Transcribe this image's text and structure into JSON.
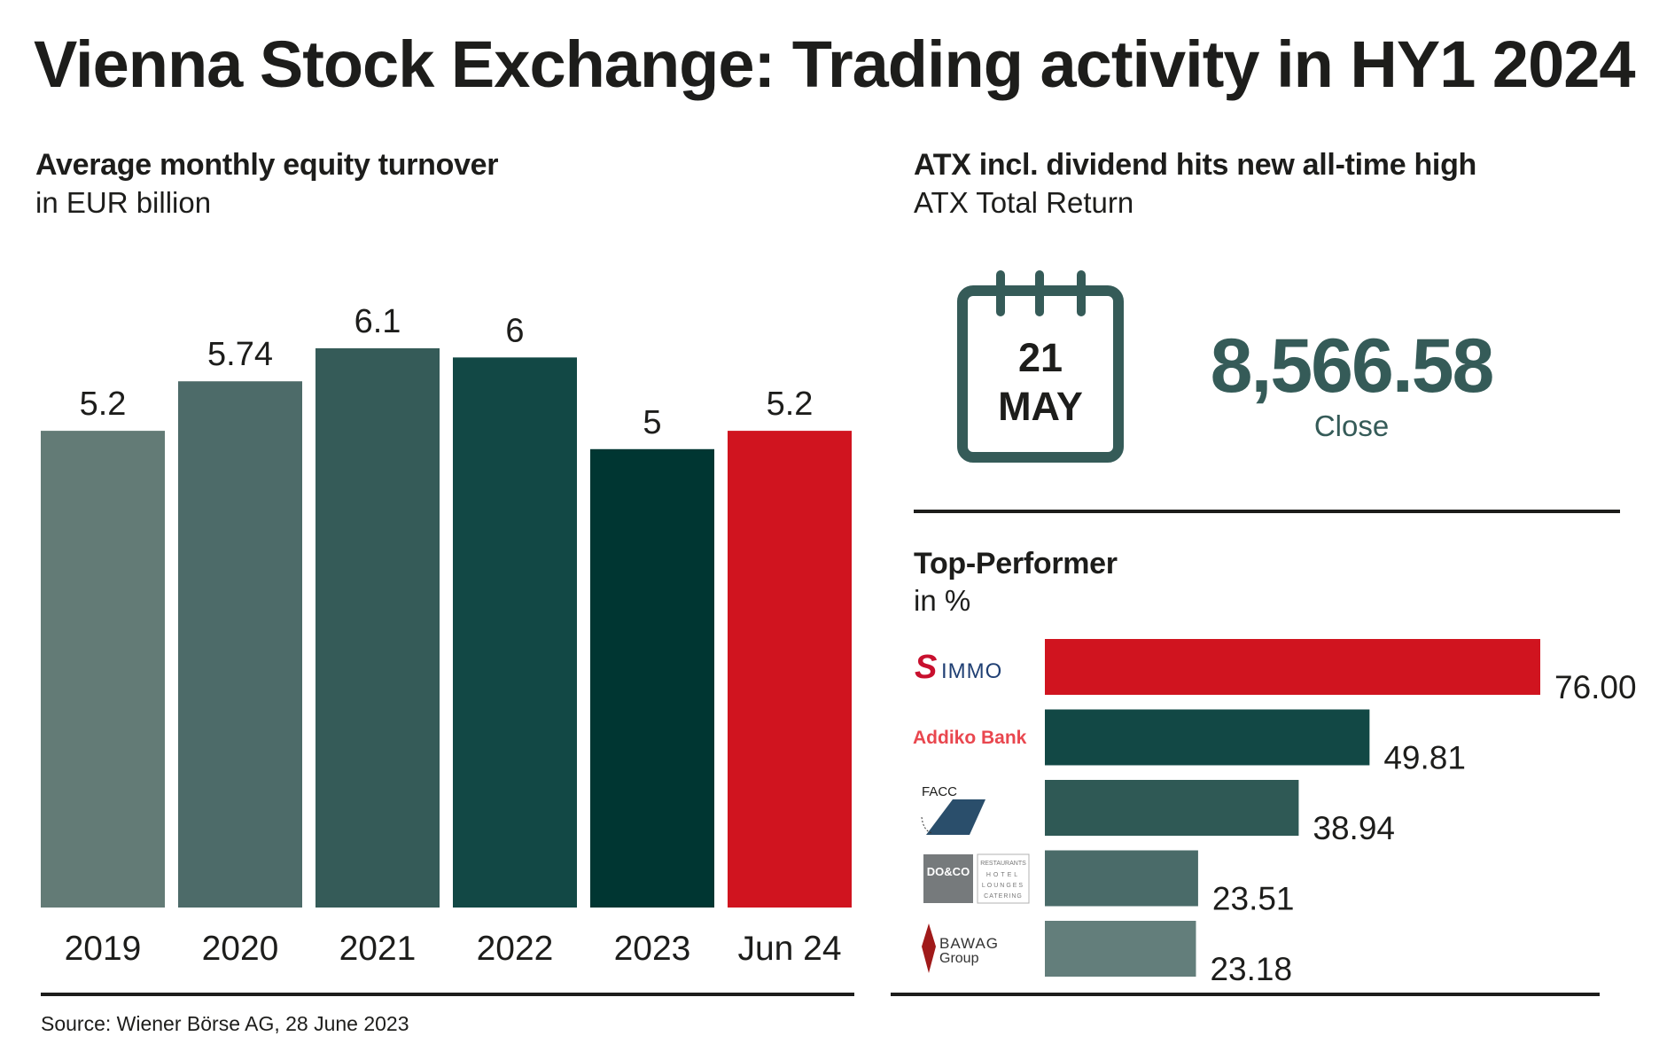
{
  "title": "Vienna Stock Exchange: Trading activity in HY1 2024",
  "left_panel": {
    "title": "Average monthly equity turnover",
    "subtitle": "in EUR billion"
  },
  "right_panel": {
    "title": "ATX incl. dividend hits new all-time high",
    "subtitle": "ATX Total Return",
    "calendar": {
      "day": "21",
      "month": "MAY",
      "icon": "calendar-icon"
    },
    "close_value": "8,566.58",
    "close_label": "Close",
    "top_performer": {
      "title": "Top-Performer",
      "subtitle": "in %"
    }
  },
  "source": "Source: Wiener Börse AG, 28 June 2023",
  "colors": {
    "accent_red": "#d0141f",
    "teal_dark": "#003632",
    "teal": "#355b58",
    "text": "#1d1d1b"
  },
  "chart_data": [
    {
      "type": "bar",
      "title": "Average monthly equity turnover",
      "subtitle": "in EUR billion",
      "xlabel": "",
      "ylabel": "EUR billion",
      "categories": [
        "2019",
        "2020",
        "2021",
        "2022",
        "2023",
        "Jun 24"
      ],
      "values": [
        5.2,
        5.74,
        6.1,
        6,
        5,
        5.2
      ],
      "value_labels": [
        "5.2",
        "5.74",
        "6.1",
        "6",
        "5",
        "5.2"
      ],
      "bar_colors": [
        "#637b76",
        "#4d6b69",
        "#355b58",
        "#124845",
        "#003632",
        "#d0141f"
      ],
      "ylim": [
        0,
        6.1
      ],
      "grid": false,
      "legend": "none"
    },
    {
      "type": "bar",
      "orientation": "horizontal",
      "title": "Top-Performer",
      "subtitle": "in %",
      "categories": [
        "S IMMO",
        "Addiko Bank",
        "FACC",
        "DO & CO",
        "BAWAG Group"
      ],
      "values": [
        76.0,
        49.81,
        38.94,
        23.51,
        23.18
      ],
      "value_labels": [
        "76.00",
        "49.81",
        "38.94",
        "23.51",
        "23.18"
      ],
      "bar_colors": [
        "#d0141f",
        "#124845",
        "#2f5955",
        "#4a6b69",
        "#637e7b"
      ],
      "xlim": [
        0,
        76
      ],
      "grid": false,
      "legend": "none"
    }
  ],
  "logos": {
    "simmo": {
      "mark": "S",
      "text": "IMMO"
    },
    "addiko": {
      "text": "Addiko Bank"
    },
    "facc": {
      "text": "FACC"
    },
    "doco": {
      "text": "DO&CO",
      "lines": [
        "RESTAURANTS",
        "HOTEL",
        "LOUNGES",
        "CATERING"
      ]
    },
    "bawag": {
      "line1": "BAWAG",
      "line2": "Group"
    }
  }
}
